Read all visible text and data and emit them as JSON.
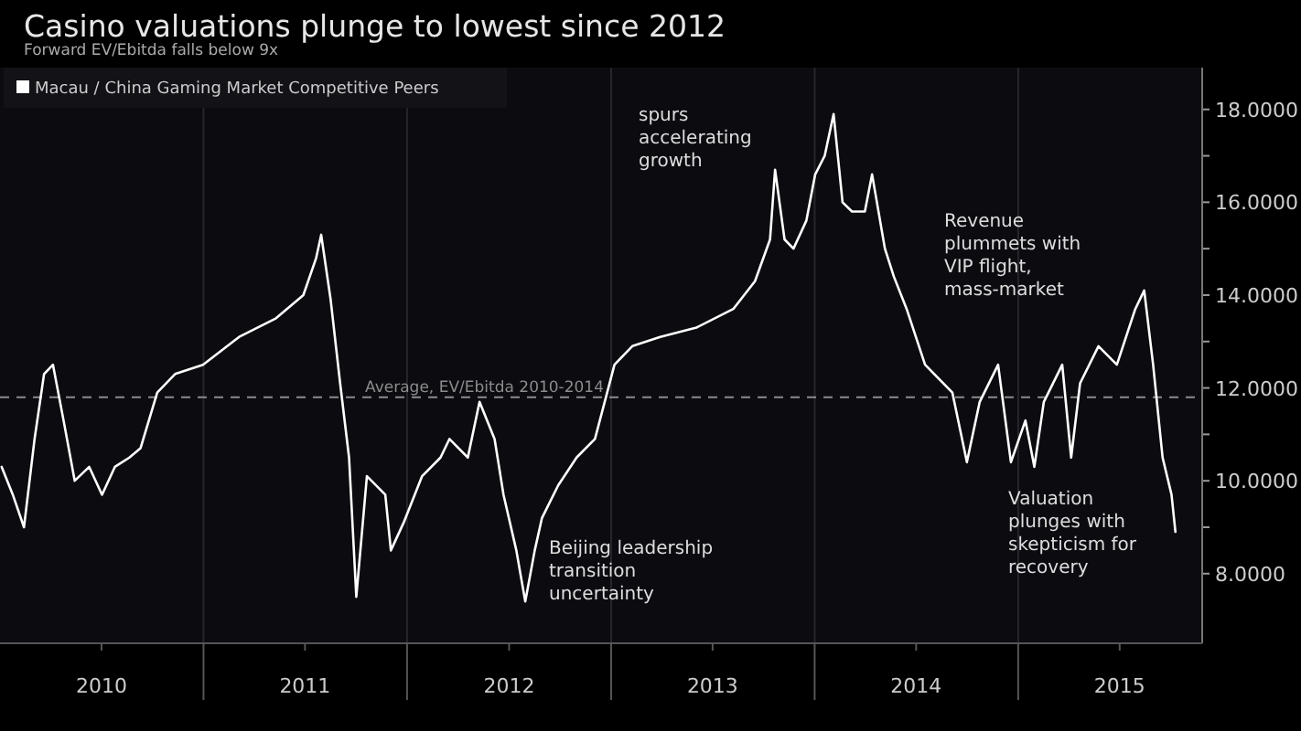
{
  "chart_data": {
    "type": "line",
    "title": "Casino valuations plunge to lowest since 2012",
    "subtitle": "Forward EV/Ebitda falls below 9x",
    "x": [
      "2010-01-04",
      "2010-01-24",
      "2010-02-13",
      "2010-03-04",
      "2010-03-21",
      "2010-04-06",
      "2010-04-25",
      "2010-05-15",
      "2010-06-10",
      "2010-07-03",
      "2010-07-26",
      "2010-08-21",
      "2010-09-10",
      "2010-10-10",
      "2010-11-11",
      "2010-12-31",
      "2011-03-06",
      "2011-05-11",
      "2011-06-29",
      "2011-07-22",
      "2011-07-31",
      "2011-08-17",
      "2011-09-03",
      "2011-09-19",
      "2011-10-02",
      "2011-10-21",
      "2011-11-23",
      "2011-12-03",
      "2011-12-26",
      "2012-01-28",
      "2012-03-01",
      "2012-03-17",
      "2012-04-19",
      "2012-05-10",
      "2012-06-06",
      "2012-06-22",
      "2012-07-15",
      "2012-07-31",
      "2012-08-17",
      "2012-08-30",
      "2012-09-28",
      "2012-10-31",
      "2012-12-03",
      "2013-01-07",
      "2013-02-08",
      "2013-03-30",
      "2013-06-03",
      "2013-08-08",
      "2013-09-16",
      "2013-10-13",
      "2013-10-22",
      "2013-11-08",
      "2013-11-24",
      "2013-12-17",
      "2014-01-02",
      "2014-01-19",
      "2014-02-04",
      "2014-02-20",
      "2014-03-09",
      "2014-04-01",
      "2014-04-14",
      "2014-05-07",
      "2014-05-23",
      "2014-06-15",
      "2014-07-18",
      "2014-09-05",
      "2014-10-01",
      "2014-10-24",
      "2014-11-26",
      "2014-12-19",
      "2015-01-14",
      "2015-01-30",
      "2015-02-16",
      "2015-03-21",
      "2015-04-06",
      "2015-04-22",
      "2015-05-25",
      "2015-06-27",
      "2015-07-30",
      "2015-08-15",
      "2015-08-31",
      "2015-09-17",
      "2015-10-03",
      "2015-10-10"
    ],
    "series": [
      {
        "name": "Macau / China Gaming Market Competitive Peers",
        "color": "#ffffff",
        "values": [
          10.3,
          9.7,
          9.0,
          10.9,
          12.3,
          12.5,
          11.3,
          10.0,
          10.3,
          9.7,
          10.3,
          10.5,
          10.7,
          11.9,
          12.3,
          12.5,
          13.1,
          13.5,
          14.0,
          14.8,
          15.3,
          13.9,
          12.1,
          10.5,
          7.5,
          10.1,
          9.7,
          8.5,
          9.1,
          10.1,
          10.5,
          10.9,
          10.5,
          11.7,
          10.9,
          9.7,
          8.5,
          7.4,
          8.5,
          9.2,
          9.9,
          10.5,
          10.9,
          12.5,
          12.9,
          13.1,
          13.3,
          13.7,
          14.3,
          15.2,
          16.7,
          15.2,
          15.0,
          15.6,
          16.6,
          17.0,
          17.9,
          16.0,
          15.8,
          15.8,
          16.6,
          15.0,
          14.4,
          13.7,
          12.5,
          11.9,
          10.4,
          11.7,
          12.5,
          10.4,
          11.3,
          10.3,
          11.7,
          12.5,
          10.5,
          12.1,
          12.9,
          12.5,
          13.7,
          14.1,
          12.5,
          10.5,
          9.7,
          8.9
        ]
      }
    ],
    "xlim": [
      "2010-01-01",
      "2015-11-27"
    ],
    "xticks": [
      {
        "value": "2010-07-02",
        "label": "2010"
      },
      {
        "value": "2011-01-01",
        "label": null
      },
      {
        "value": "2011-07-02",
        "label": "2011"
      },
      {
        "value": "2012-01-01",
        "label": null
      },
      {
        "value": "2012-07-02",
        "label": "2012"
      },
      {
        "value": "2013-01-01",
        "label": null
      },
      {
        "value": "2013-07-02",
        "label": "2013"
      },
      {
        "value": "2014-01-01",
        "label": null
      },
      {
        "value": "2014-07-02",
        "label": "2014"
      },
      {
        "value": "2015-01-01",
        "label": null
      },
      {
        "value": "2015-07-02",
        "label": "2015"
      }
    ],
    "ylim": [
      6.5,
      18.9
    ],
    "yticks": [
      {
        "value": 8,
        "label": "8.0000"
      },
      {
        "value": 9,
        "label": null
      },
      {
        "value": 10,
        "label": "10.0000"
      },
      {
        "value": 11,
        "label": null
      },
      {
        "value": 12,
        "label": "12.0000"
      },
      {
        "value": 13,
        "label": null
      },
      {
        "value": 14,
        "label": "14.0000"
      },
      {
        "value": 15,
        "label": null
      },
      {
        "value": 16,
        "label": "16.0000"
      },
      {
        "value": 17,
        "label": null
      },
      {
        "value": 18,
        "label": "18.0000"
      }
    ],
    "grid": "x",
    "legend": "top left",
    "line_style": "solid",
    "marker": "none",
    "ref_lines": [
      {
        "axis": "y",
        "value": 11.8,
        "label": "Average, EV/Ebitda 2010-2014",
        "color": "#8c8c8c",
        "line_style": "dashed"
      }
    ],
    "annotations": [
      "spurs accelerating growth",
      "Revenue plummets with VIP flight, mass-market",
      "Beijing leadership transition uncertainty",
      "Valuation plunges with skepticism for recovery"
    ]
  }
}
